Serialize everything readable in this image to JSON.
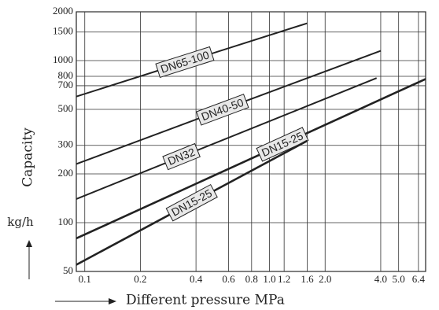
{
  "chart_data": {
    "type": "line",
    "y_label": "Capacity",
    "y_unit": "kg/h",
    "x_label": "Different pressure MPa",
    "log_x": true,
    "log_y": true,
    "grid": true,
    "xlim": [
      0.09,
      7
    ],
    "ylim": [
      50,
      2000
    ],
    "xticks": [
      0.1,
      0.2,
      0.4,
      0.6,
      0.8,
      {
        "value": 1,
        "label": "1.0"
      },
      1.2,
      1.6,
      {
        "value": 2,
        "label": "2.0"
      },
      {
        "value": 4,
        "label": "4.0"
      },
      {
        "value": 5,
        "label": "5.0"
      },
      6.4
    ],
    "yticks": [
      50,
      100,
      200,
      300,
      500,
      700,
      800,
      1000,
      1500,
      2000
    ],
    "series": [
      {
        "name": "DN65-100",
        "color": "#222222",
        "x": [
          0.09,
          1.6
        ],
        "values": [
          600,
          1700
        ]
      },
      {
        "name": "DN40-50",
        "color": "#222222",
        "x": [
          0.09,
          4.0
        ],
        "values": [
          230,
          1150
        ]
      },
      {
        "name": "DN32",
        "color": "#222222",
        "x": [
          0.09,
          3.8
        ],
        "values": [
          140,
          780
        ]
      },
      {
        "name": "DN15-25",
        "color": "#222222",
        "x": [
          0.09,
          7
        ],
        "values": [
          80,
          770
        ]
      },
      {
        "name": "DN15-25",
        "color": "#222222",
        "x": [
          0.09,
          1.6
        ],
        "values": [
          55,
          320
        ]
      }
    ]
  }
}
